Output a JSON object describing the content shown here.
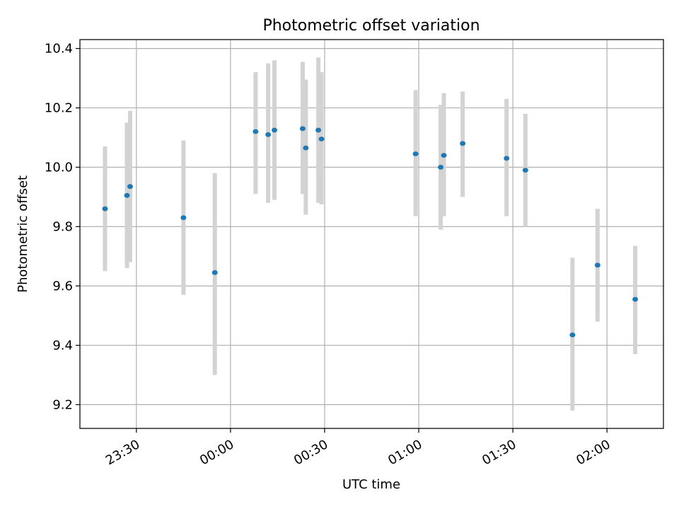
{
  "chart_data": {
    "type": "scatter",
    "title": "Photometric offset variation",
    "xlabel": "UTC time",
    "ylabel": "Photometric offset",
    "x_axis": {
      "kind": "time",
      "date": "",
      "range": [
        "23:12",
        "02:18"
      ],
      "ticks": [
        "23:30",
        "00:00",
        "00:30",
        "01:00",
        "01:30",
        "02:00"
      ],
      "tick_labels": [
        "23:30",
        "00:00",
        "00:30",
        "01:00",
        "01:30",
        "02:00"
      ]
    },
    "y_axis": {
      "range": [
        9.12,
        10.43
      ],
      "ticks": [
        9.2,
        9.4,
        9.6,
        9.8,
        10.0,
        10.2,
        10.4
      ],
      "tick_labels": [
        "9.2",
        "9.4",
        "9.6",
        "9.8",
        "10.0",
        "10.2",
        "10.4"
      ]
    },
    "grid": true,
    "colors": {
      "point": "#1f77b4",
      "errorbar": "#d3d3d3",
      "grid": "#b0b0b0"
    },
    "series": [
      {
        "points": [
          {
            "x": "23:20",
            "y": 9.86,
            "ylow": 9.65,
            "yhigh": 10.07
          },
          {
            "x": "23:27",
            "y": 9.905,
            "ylow": 9.66,
            "yhigh": 10.15
          },
          {
            "x": "23:28",
            "y": 9.935,
            "ylow": 9.68,
            "yhigh": 10.19
          },
          {
            "x": "23:45",
            "y": 9.83,
            "ylow": 9.57,
            "yhigh": 10.09
          },
          {
            "x": "23:55",
            "y": 9.645,
            "ylow": 9.3,
            "yhigh": 9.98
          },
          {
            "x": "00:08",
            "y": 10.12,
            "ylow": 9.91,
            "yhigh": 10.32
          },
          {
            "x": "00:12",
            "y": 10.11,
            "ylow": 9.88,
            "yhigh": 10.35
          },
          {
            "x": "00:14",
            "y": 10.125,
            "ylow": 9.89,
            "yhigh": 10.36
          },
          {
            "x": "00:23",
            "y": 10.13,
            "ylow": 9.91,
            "yhigh": 10.355
          },
          {
            "x": "00:24",
            "y": 10.065,
            "ylow": 9.84,
            "yhigh": 10.295
          },
          {
            "x": "00:28",
            "y": 10.125,
            "ylow": 9.88,
            "yhigh": 10.37
          },
          {
            "x": "00:29",
            "y": 10.095,
            "ylow": 9.875,
            "yhigh": 10.32
          },
          {
            "x": "00:59",
            "y": 10.045,
            "ylow": 9.835,
            "yhigh": 10.26
          },
          {
            "x": "01:07",
            "y": 10.0,
            "ylow": 9.79,
            "yhigh": 10.21
          },
          {
            "x": "01:08",
            "y": 10.04,
            "ylow": 9.835,
            "yhigh": 10.25
          },
          {
            "x": "01:14",
            "y": 10.08,
            "ylow": 9.9,
            "yhigh": 10.255
          },
          {
            "x": "01:28",
            "y": 10.03,
            "ylow": 9.835,
            "yhigh": 10.23
          },
          {
            "x": "01:34",
            "y": 9.99,
            "ylow": 9.8,
            "yhigh": 10.18
          },
          {
            "x": "01:49",
            "y": 9.435,
            "ylow": 9.18,
            "yhigh": 9.695
          },
          {
            "x": "01:57",
            "y": 9.67,
            "ylow": 9.48,
            "yhigh": 9.86
          },
          {
            "x": "02:09",
            "y": 9.555,
            "ylow": 9.37,
            "yhigh": 9.735
          }
        ]
      }
    ]
  }
}
